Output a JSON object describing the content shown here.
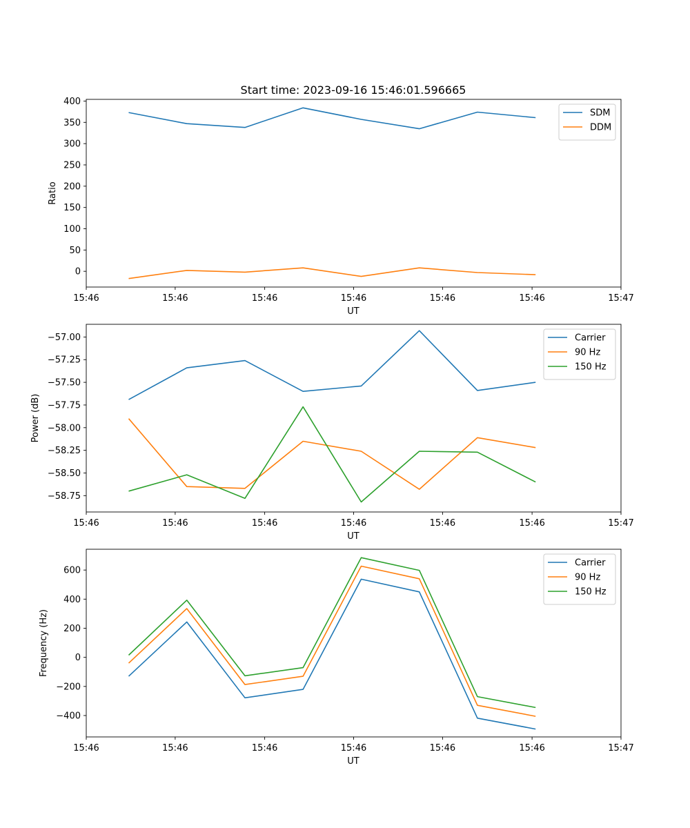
{
  "figure_title": "Start time: 2023-09-16 15:46:01.596665",
  "colors": {
    "c0": "#1f77b4",
    "c1": "#ff7f0e",
    "c2": "#2ca02c"
  },
  "chart_data": [
    {
      "type": "line",
      "xlabel": "UT",
      "ylabel": "Ratio",
      "xlim": [
        0,
        9.2
      ],
      "ylim": [
        -37,
        404
      ],
      "x": [
        0.73,
        1.73,
        2.73,
        3.73,
        4.73,
        5.73,
        6.73,
        7.73
      ],
      "xticks": [
        0,
        1.53,
        3.07,
        4.6,
        6.13,
        7.67,
        9.2
      ],
      "xtick_labels": [
        "15:46",
        "15:46",
        "15:46",
        "15:46",
        "15:46",
        "15:46",
        "15:47"
      ],
      "yticks": [
        0,
        50,
        100,
        150,
        200,
        250,
        300,
        350,
        400
      ],
      "ytick_labels": [
        "0",
        "50",
        "100",
        "150",
        "200",
        "250",
        "300",
        "350",
        "400"
      ],
      "legend": "top-right",
      "series": [
        {
          "name": "SDM",
          "color": "#1f77b4",
          "values": [
            373,
            347,
            338,
            384,
            357,
            335,
            374,
            361
          ]
        },
        {
          "name": "DDM",
          "color": "#ff7f0e",
          "values": [
            -17,
            2,
            -2,
            8,
            -12,
            8,
            -3,
            -8
          ]
        }
      ]
    },
    {
      "type": "line",
      "xlabel": "UT",
      "ylabel": "Power (dB)",
      "xlim": [
        0,
        9.2
      ],
      "ylim": [
        -58.93,
        -56.86
      ],
      "x": [
        0.73,
        1.73,
        2.73,
        3.73,
        4.73,
        5.73,
        6.73,
        7.73
      ],
      "xticks": [
        0,
        1.53,
        3.07,
        4.6,
        6.13,
        7.67,
        9.2
      ],
      "xtick_labels": [
        "15:46",
        "15:46",
        "15:46",
        "15:46",
        "15:46",
        "15:46",
        "15:47"
      ],
      "yticks": [
        -58.75,
        -58.5,
        -58.25,
        -58.0,
        -57.75,
        -57.5,
        -57.25,
        -57.0
      ],
      "ytick_labels": [
        "−58.75",
        "−58.50",
        "−58.25",
        "−58.00",
        "−57.75",
        "−57.50",
        "−57.25",
        "−57.00"
      ],
      "legend": "top-right",
      "series": [
        {
          "name": "Carrier",
          "color": "#1f77b4",
          "values": [
            -57.69,
            -57.34,
            -57.26,
            -57.6,
            -57.54,
            -56.93,
            -57.59,
            -57.5
          ]
        },
        {
          "name": "90 Hz",
          "color": "#ff7f0e",
          "values": [
            -57.9,
            -58.65,
            -58.67,
            -58.15,
            -58.26,
            -58.68,
            -58.11,
            -58.22
          ]
        },
        {
          "name": "150 Hz",
          "color": "#2ca02c",
          "values": [
            -58.7,
            -58.52,
            -58.78,
            -57.77,
            -58.82,
            -58.26,
            -58.27,
            -58.6
          ]
        }
      ]
    },
    {
      "type": "line",
      "xlabel": "UT",
      "ylabel": "Frequency (Hz)",
      "xlim": [
        0,
        9.2
      ],
      "ylim": [
        -547,
        743
      ],
      "x": [
        0.73,
        1.73,
        2.73,
        3.73,
        4.73,
        5.73,
        6.73,
        7.73
      ],
      "xticks": [
        0,
        1.53,
        3.07,
        4.6,
        6.13,
        7.67,
        9.2
      ],
      "xtick_labels": [
        "15:46",
        "15:46",
        "15:46",
        "15:46",
        "15:46",
        "15:46",
        "15:47"
      ],
      "yticks": [
        -400,
        -200,
        0,
        200,
        400,
        600
      ],
      "ytick_labels": [
        "−400",
        "−200",
        "0",
        "200",
        "400",
        "600"
      ],
      "legend": "top-right",
      "series": [
        {
          "name": "Carrier",
          "color": "#1f77b4",
          "values": [
            -130,
            243,
            -278,
            -220,
            537,
            450,
            -418,
            -493
          ]
        },
        {
          "name": "90 Hz",
          "color": "#ff7f0e",
          "values": [
            -40,
            335,
            -187,
            -130,
            627,
            540,
            -330,
            -405
          ]
        },
        {
          "name": "150 Hz",
          "color": "#2ca02c",
          "values": [
            15,
            393,
            -127,
            -71,
            685,
            598,
            -270,
            -345
          ]
        }
      ]
    }
  ]
}
